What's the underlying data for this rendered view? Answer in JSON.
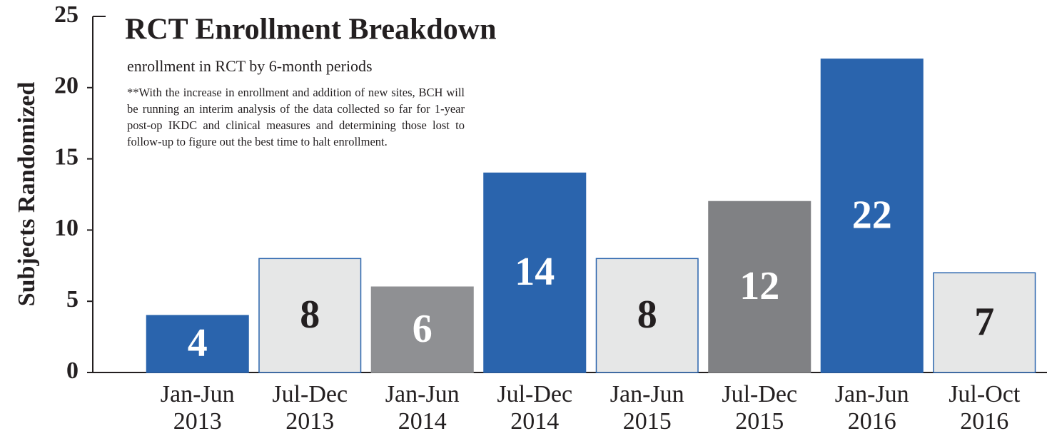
{
  "chart_data": {
    "type": "bar",
    "title": "RCT Enrollment Breakdown",
    "subtitle": "enrollment in RCT by 6-month periods",
    "annotation": "**With the increase in enrollment and addition of new sites, BCH will be running an interim analysis of the data collected so far for 1-year post-op IKDC and clinical measures and determining those lost to follow-up to figure out the best time to halt enrollment.",
    "y_label": "Subjects Randomized",
    "categories": [
      "Jan-Jun 2013",
      "Jul-Dec 2013",
      "Jan-Jun 2014",
      "Jul-Dec 2014",
      "Jan-Jun 2015",
      "Jul-Dec 2015",
      "Jan-Jun 2016",
      "Jul-Oct 2016"
    ],
    "values": [
      4,
      8,
      6,
      14,
      8,
      12,
      22,
      7
    ],
    "colors": [
      "#2a64ad",
      "#e6e7e7",
      "#8f9093",
      "#2a64ad",
      "#e6e7e7",
      "#808184",
      "#2a64ad",
      "#e6e7e7"
    ],
    "ylim": [
      0,
      25
    ],
    "yticks": [
      0,
      5,
      10,
      15,
      20,
      25
    ]
  }
}
